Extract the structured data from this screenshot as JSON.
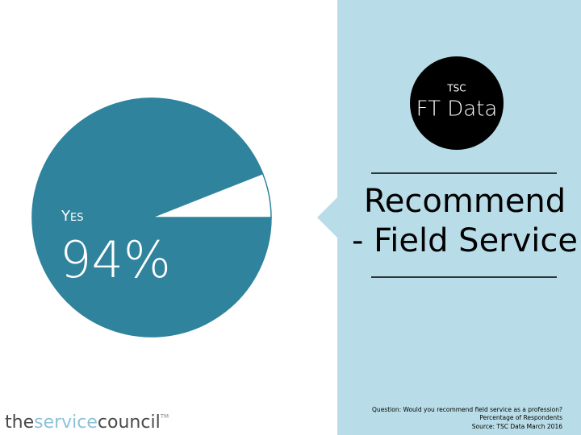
{
  "chart_data": {
    "type": "pie",
    "categories": [
      "Yes",
      null
    ],
    "values": [
      94,
      6
    ],
    "value_labels": [
      "94%",
      null
    ],
    "colors": [
      "#2f839d",
      "#ffffff"
    ],
    "edge_color": "#2f839d"
  },
  "badge": {
    "top": "TSC",
    "main": "FT Data"
  },
  "headline": [
    "Recommend",
    "- Field Service"
  ],
  "notes": [
    "Question: Would you recommend field service as a profession?",
    "Percentage of Respondents",
    "Source: TSC Data March 2016"
  ],
  "logo": [
    "the",
    "service",
    "council",
    "TM"
  ]
}
